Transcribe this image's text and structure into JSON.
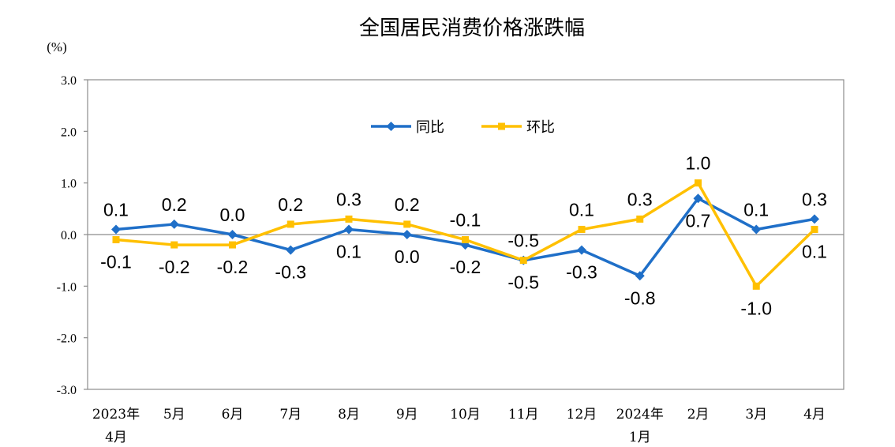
{
  "chart_data": {
    "type": "line",
    "title": "全国居民消费价格涨跌幅",
    "unit_label": "(%)",
    "categories": [
      [
        "2023年",
        "4月"
      ],
      [
        "5月"
      ],
      [
        "6月"
      ],
      [
        "7月"
      ],
      [
        "8月"
      ],
      [
        "9月"
      ],
      [
        "10月"
      ],
      [
        "11月"
      ],
      [
        "12月"
      ],
      [
        "2024年",
        "1月"
      ],
      [
        "2月"
      ],
      [
        "3月"
      ],
      [
        "4月"
      ]
    ],
    "ylim": [
      -3.0,
      3.0
    ],
    "yticks": [
      3.0,
      2.0,
      1.0,
      0.0,
      -1.0,
      -2.0,
      -3.0
    ],
    "ytick_labels": [
      "3.0",
      "2.0",
      "1.0",
      "0.0",
      "-1.0",
      "-2.0",
      "-3.0"
    ],
    "series": [
      {
        "name": "同比",
        "color": "#1F6FC8",
        "marker": "diamond",
        "values": [
          0.1,
          0.2,
          0.0,
          -0.3,
          0.1,
          0.0,
          -0.2,
          -0.5,
          -0.3,
          -0.8,
          0.7,
          0.1,
          0.3
        ],
        "labels": [
          "0.1",
          "0.2",
          "0.0",
          "-0.3",
          "0.1",
          "0.0",
          "-0.2",
          "-0.5",
          "-0.3",
          "-0.8",
          "0.7",
          "0.1",
          "0.3"
        ],
        "label_pos": [
          "above",
          "above",
          "above",
          "below",
          "below",
          "below",
          "below",
          "below",
          "below",
          "below",
          "below",
          "above",
          "above"
        ]
      },
      {
        "name": "环比",
        "color": "#FFC000",
        "marker": "square",
        "values": [
          -0.1,
          -0.2,
          -0.2,
          0.2,
          0.3,
          0.2,
          -0.1,
          -0.5,
          0.1,
          0.3,
          1.0,
          -1.0,
          0.1
        ],
        "labels": [
          "-0.1",
          "-0.2",
          "-0.2",
          "0.2",
          "0.3",
          "0.2",
          "-0.1",
          "-0.5",
          "0.1",
          "0.3",
          "1.0",
          "-1.0",
          "0.1"
        ],
        "label_pos": [
          "below",
          "below",
          "below",
          "above",
          "above",
          "above",
          "above",
          "above",
          "above",
          "above",
          "above",
          "below",
          "below"
        ]
      }
    ],
    "legend_position": "top-center",
    "grid": false
  }
}
